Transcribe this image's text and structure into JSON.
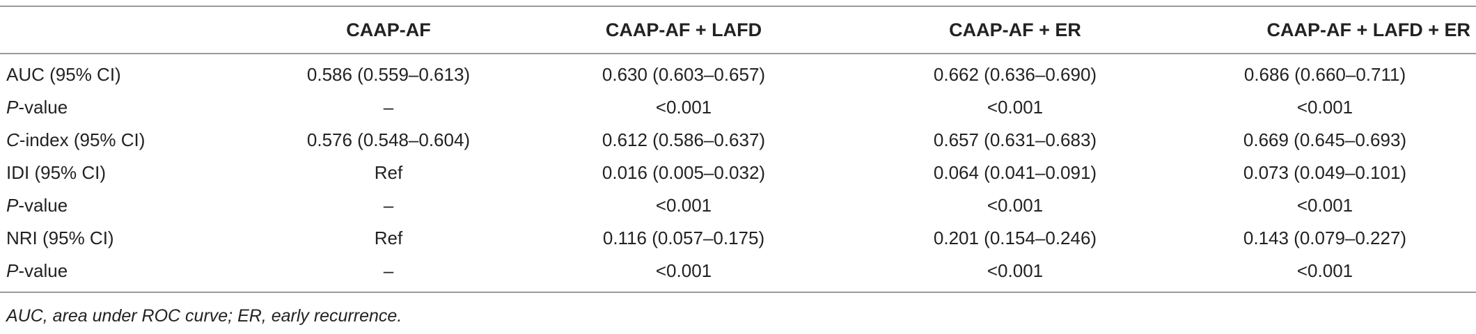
{
  "table": {
    "headers": [
      "",
      "CAAP-AF",
      "CAAP-AF + LAFD",
      "CAAP-AF + ER",
      "CAAP-AF + LAFD + ER"
    ],
    "rows": [
      {
        "label_italic": "",
        "label_rest": "AUC (95% CI)",
        "cells": [
          "0.586 (0.559–0.613)",
          "0.630 (0.603–0.657)",
          "0.662 (0.636–0.690)",
          "0.686 (0.660–0.711)"
        ]
      },
      {
        "label_italic": "P",
        "label_rest": "-value",
        "cells": [
          "–",
          "<0.001",
          "<0.001",
          "<0.001"
        ]
      },
      {
        "label_italic": "C",
        "label_rest": "-index (95% CI)",
        "cells": [
          "0.576 (0.548–0.604)",
          "0.612 (0.586–0.637)",
          "0.657 (0.631–0.683)",
          "0.669 (0.645–0.693)"
        ]
      },
      {
        "label_italic": "",
        "label_rest": "IDI (95% CI)",
        "cells": [
          "Ref",
          "0.016 (0.005–0.032)",
          "0.064 (0.041–0.091)",
          "0.073 (0.049–0.101)"
        ]
      },
      {
        "label_italic": "P",
        "label_rest": "-value",
        "cells": [
          "–",
          "<0.001",
          "<0.001",
          "<0.001"
        ]
      },
      {
        "label_italic": "",
        "label_rest": "NRI (95% CI)",
        "cells": [
          "Ref",
          "0.116 (0.057–0.175)",
          "0.201 (0.154–0.246)",
          "0.143 (0.079–0.227)"
        ]
      },
      {
        "label_italic": "P",
        "label_rest": "-value",
        "cells": [
          "–",
          "<0.001",
          "<0.001",
          "<0.001"
        ]
      }
    ]
  },
  "footnote": "AUC, area under ROC curve; ER, early recurrence."
}
